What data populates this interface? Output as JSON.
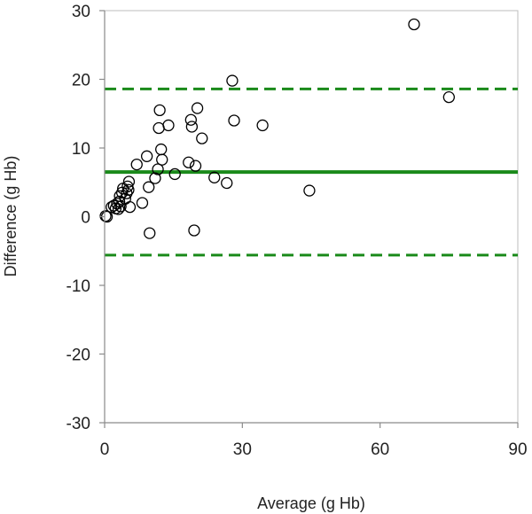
{
  "chart_data": {
    "type": "scatter",
    "title": "",
    "xlabel": "Average (g Hb)",
    "ylabel": "Difference (g Hb)",
    "xlim": [
      0,
      90
    ],
    "ylim": [
      -30,
      30
    ],
    "xticks": [
      0,
      30,
      60,
      90
    ],
    "yticks": [
      30,
      20,
      10,
      0,
      -10,
      -20,
      -30
    ],
    "grid": false,
    "legend": "none",
    "mean_line": {
      "value": 6.5,
      "color": "#1a8a1a",
      "style": "solid"
    },
    "limits_of_agreement": {
      "upper": 18.6,
      "lower": -5.6,
      "color": "#1a8a1a",
      "style": "dashed"
    },
    "marker": {
      "shape": "open-circle",
      "color": "#000000"
    },
    "points": [
      {
        "x": 0.2,
        "y": 0.1
      },
      {
        "x": 0.5,
        "y": 0.0
      },
      {
        "x": 1.5,
        "y": 1.4
      },
      {
        "x": 2.0,
        "y": 1.6
      },
      {
        "x": 2.4,
        "y": 1.2
      },
      {
        "x": 2.7,
        "y": 1.9
      },
      {
        "x": 3.0,
        "y": 1.1
      },
      {
        "x": 3.2,
        "y": 2.2
      },
      {
        "x": 3.5,
        "y": 1.5
      },
      {
        "x": 3.3,
        "y": 3.0
      },
      {
        "x": 3.8,
        "y": 3.5
      },
      {
        "x": 4.0,
        "y": 4.1
      },
      {
        "x": 4.5,
        "y": 2.6
      },
      {
        "x": 4.8,
        "y": 3.4
      },
      {
        "x": 5.0,
        "y": 4.4
      },
      {
        "x": 5.2,
        "y": 3.9
      },
      {
        "x": 5.3,
        "y": 5.1
      },
      {
        "x": 5.5,
        "y": 1.4
      },
      {
        "x": 7.0,
        "y": 7.6
      },
      {
        "x": 8.2,
        "y": 2.0
      },
      {
        "x": 9.2,
        "y": 8.8
      },
      {
        "x": 9.6,
        "y": 4.3
      },
      {
        "x": 9.8,
        "y": -2.4
      },
      {
        "x": 11.0,
        "y": 5.6
      },
      {
        "x": 11.6,
        "y": 6.9
      },
      {
        "x": 11.8,
        "y": 12.9
      },
      {
        "x": 12.0,
        "y": 15.5
      },
      {
        "x": 12.3,
        "y": 9.8
      },
      {
        "x": 12.5,
        "y": 8.3
      },
      {
        "x": 13.9,
        "y": 13.3
      },
      {
        "x": 15.3,
        "y": 6.2
      },
      {
        "x": 18.3,
        "y": 7.9
      },
      {
        "x": 18.8,
        "y": 14.1
      },
      {
        "x": 19.0,
        "y": 13.1
      },
      {
        "x": 19.5,
        "y": -2.0
      },
      {
        "x": 19.8,
        "y": 7.4
      },
      {
        "x": 20.2,
        "y": 15.8
      },
      {
        "x": 21.2,
        "y": 11.4
      },
      {
        "x": 23.9,
        "y": 5.7
      },
      {
        "x": 26.6,
        "y": 4.9
      },
      {
        "x": 27.8,
        "y": 19.8
      },
      {
        "x": 28.2,
        "y": 14.0
      },
      {
        "x": 34.4,
        "y": 13.3
      },
      {
        "x": 44.6,
        "y": 3.8
      },
      {
        "x": 67.4,
        "y": 28.0
      },
      {
        "x": 75.0,
        "y": 17.4
      }
    ]
  }
}
